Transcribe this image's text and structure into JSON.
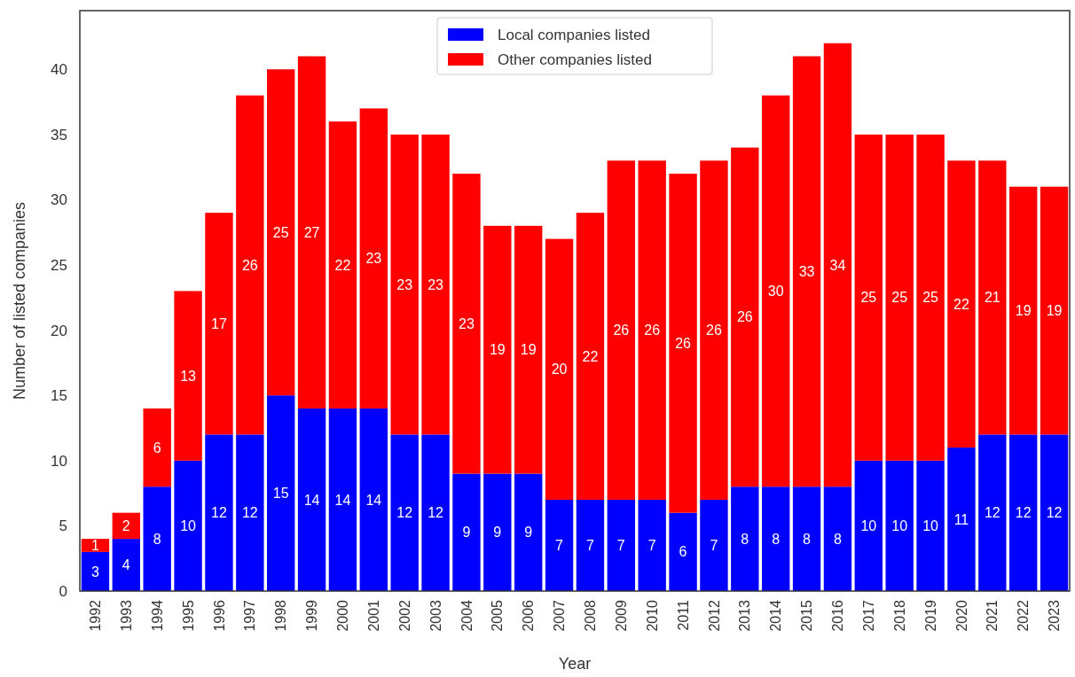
{
  "chart_data": {
    "type": "bar",
    "stacked": true,
    "xlabel": "Year",
    "ylabel": "Number of listed companies",
    "categories": [
      "1992",
      "1993",
      "1994",
      "1995",
      "1996",
      "1997",
      "1998",
      "1999",
      "2000",
      "2001",
      "2002",
      "2003",
      "2004",
      "2005",
      "2006",
      "2007",
      "2008",
      "2009",
      "2010",
      "2011",
      "2012",
      "2013",
      "2014",
      "2015",
      "2016",
      "2017",
      "2018",
      "2019",
      "2020",
      "2021",
      "2022",
      "2023"
    ],
    "series": [
      {
        "name": "Local companies listed",
        "color": "#0000ff",
        "values": [
          3,
          4,
          8,
          10,
          12,
          12,
          15,
          14,
          14,
          14,
          12,
          12,
          9,
          9,
          9,
          7,
          7,
          7,
          7,
          6,
          7,
          8,
          8,
          8,
          8,
          10,
          10,
          10,
          11,
          12,
          12,
          12
        ]
      },
      {
        "name": "Other companies listed",
        "color": "#ff0000",
        "values": [
          1,
          2,
          6,
          13,
          17,
          26,
          25,
          27,
          22,
          23,
          23,
          23,
          23,
          19,
          19,
          20,
          22,
          26,
          26,
          26,
          26,
          26,
          30,
          33,
          34,
          25,
          25,
          25,
          22,
          21,
          19,
          19
        ]
      }
    ],
    "ylim": [
      0,
      44.5
    ],
    "yticks": [
      0,
      5,
      10,
      15,
      20,
      25,
      30,
      35,
      40
    ],
    "grid": false,
    "legend": "top",
    "data_labels": true
  }
}
